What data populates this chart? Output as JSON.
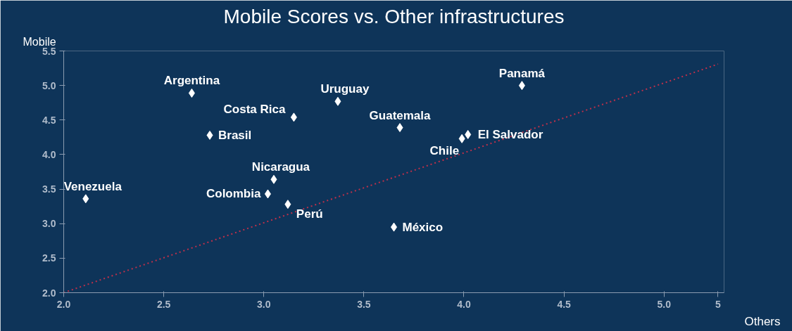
{
  "chart_data": {
    "type": "scatter",
    "title": "Mobile Scores vs. Other infrastructures",
    "xlabel": "Others",
    "ylabel": "Mobile",
    "xlim": [
      2.0,
      5.3
    ],
    "ylim": [
      2.0,
      5.5
    ],
    "xticks": [
      {
        "value": 2.0,
        "label": "2.0"
      },
      2.5,
      {
        "value": 3.0,
        "label": "3.0"
      },
      3.5,
      {
        "value": 4.0,
        "label": "4.0"
      },
      4.5,
      {
        "value": 5.0,
        "label": "5.0"
      },
      {
        "value": 5.27,
        "label": "5"
      }
    ],
    "yticks": [
      {
        "value": 2.0,
        "label": "2.0"
      },
      2.5,
      {
        "value": 3.0,
        "label": "3.0"
      },
      3.5,
      {
        "value": 4.0,
        "label": "4.0"
      },
      4.5,
      {
        "value": 5.0,
        "label": "5.0"
      },
      5.5
    ],
    "marker": "diamond",
    "grid": false,
    "legend": false,
    "series": [
      {
        "name": "Argentina",
        "color": "#ffffff",
        "x": [
          2.64
        ],
        "values": [
          4.89
        ]
      },
      {
        "name": "Uruguay",
        "color": "#ffffff",
        "x": [
          3.37
        ],
        "values": [
          4.77
        ]
      },
      {
        "name": "Costa Rica",
        "color": "#ffffff",
        "x": [
          3.15
        ],
        "values": [
          4.54
        ]
      },
      {
        "name": "Panamá",
        "color": "#ffffff",
        "x": [
          4.29
        ],
        "values": [
          5.0
        ]
      },
      {
        "name": "Brasil",
        "color": "#ffffff",
        "x": [
          2.73
        ],
        "values": [
          4.28
        ]
      },
      {
        "name": "Guatemala",
        "color": "#ffffff",
        "x": [
          3.68
        ],
        "values": [
          4.39
        ]
      },
      {
        "name": "Chile",
        "color": "#ffffff",
        "x": [
          3.99
        ],
        "values": [
          4.23
        ]
      },
      {
        "name": "El Salvador",
        "color": "#ffffff",
        "x": [
          4.02
        ],
        "values": [
          4.29
        ]
      },
      {
        "name": "Nicaragua",
        "color": "#ffffff",
        "x": [
          3.05
        ],
        "values": [
          3.64
        ]
      },
      {
        "name": "Colombia",
        "color": "#ffffff",
        "x": [
          3.02
        ],
        "values": [
          3.43
        ]
      },
      {
        "name": "Perú",
        "color": "#ffffff",
        "x": [
          3.12
        ],
        "values": [
          3.28
        ]
      },
      {
        "name": "Venezuela",
        "color": "#ffffff",
        "x": [
          2.11
        ],
        "values": [
          3.36
        ]
      },
      {
        "name": "México",
        "color": "#ffffff",
        "x": [
          3.65
        ],
        "values": [
          2.95
        ]
      },
      {
        "type": "line",
        "marker": "none",
        "line_style": "dotted",
        "color": "#c0304a",
        "x": [
          2.0,
          5.27
        ],
        "values": [
          2.0,
          5.31
        ]
      }
    ]
  }
}
